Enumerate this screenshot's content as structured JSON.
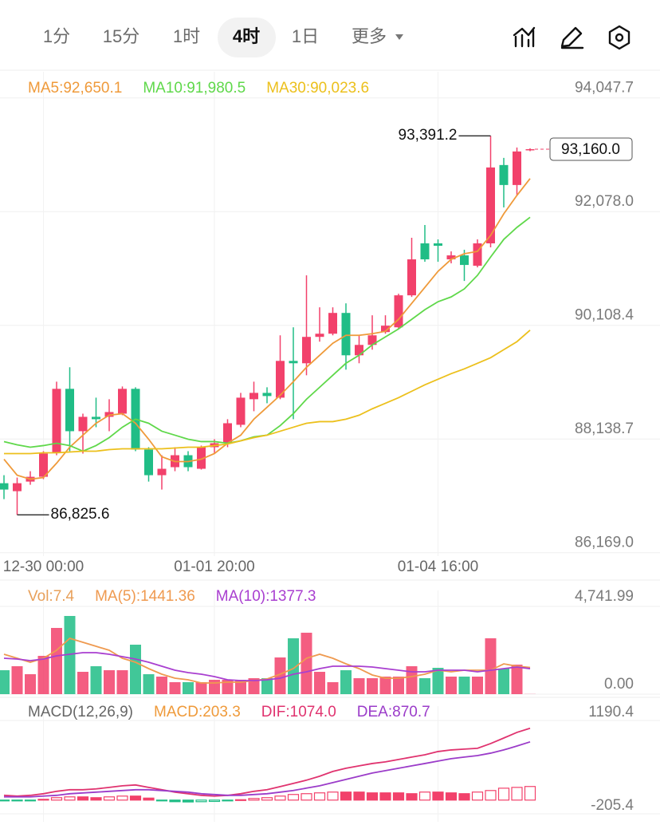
{
  "tabs": [
    "1分",
    "15分",
    "1时",
    "4时",
    "1日",
    "更多"
  ],
  "chart_data": [
    {
      "type": "candlestick",
      "categories": [
        null,
        null,
        null,
        "12-30 00:00",
        null,
        null,
        null,
        null,
        null,
        null,
        null,
        null,
        null,
        null,
        null,
        null,
        "01-01 20:00",
        null,
        null,
        null,
        null,
        null,
        null,
        null,
        null,
        null,
        null,
        null,
        null,
        null,
        null,
        null,
        null,
        "01-04 16:00",
        null,
        null,
        null,
        null,
        null,
        null,
        null
      ],
      "open": [
        87373,
        87235,
        87401,
        87484,
        87900,
        89008,
        88274,
        88523,
        88523,
        88578,
        89008,
        87955,
        87512,
        87651,
        87858,
        87623,
        87997,
        88066,
        88385,
        88828,
        88938,
        88855,
        89492,
        89451,
        89908,
        89963,
        90323,
        89589,
        89769,
        89991,
        90074,
        90628,
        91528,
        91528,
        91251,
        91320,
        91140,
        91528,
        92885,
        92539,
        93140
      ],
      "high": [
        87512,
        87471,
        87581,
        87928,
        89132,
        89382,
        88578,
        88855,
        88828,
        89049,
        89035,
        87997,
        87858,
        87997,
        87928,
        88025,
        88135,
        88482,
        88938,
        89132,
        89035,
        89935,
        90074,
        90974,
        90420,
        90420,
        90489,
        89935,
        90282,
        90282,
        90655,
        91625,
        91846,
        91597,
        91389,
        91417,
        91597,
        93391.2,
        93009,
        93189,
        93175
      ],
      "low": [
        87097,
        86825.6,
        87346,
        87443,
        87858,
        87928,
        87886,
        88343,
        88274,
        88551,
        87928,
        87401,
        87263,
        87581,
        87581,
        87609,
        87886,
        87997,
        88343,
        88620,
        88758,
        88828,
        88482,
        89243,
        89825,
        89935,
        89340,
        89451,
        89686,
        89963,
        90046,
        90600,
        91209,
        91209,
        91182,
        90877,
        91112,
        91459,
        92151,
        92359,
        93125
      ],
      "close": [
        87263,
        87373,
        87484,
        87886,
        89008,
        88274,
        88523,
        88482,
        88606,
        89008,
        87955,
        87512,
        87623,
        87858,
        87651,
        87997,
        88066,
        88412,
        88855,
        88938,
        88883,
        89492,
        89451,
        89908,
        89963,
        90323,
        89589,
        89769,
        89935,
        90102,
        90628,
        91251,
        91251,
        91486,
        91320,
        91154,
        91528,
        92843,
        92539,
        93120,
        93160
      ],
      "up_color": "#f2416b",
      "down_color": "#20bd86",
      "series": [
        {
          "name": "MA5:92,650.1",
          "color": "#ef9a3a",
          "values": [
            87789,
            87512,
            87443,
            87471,
            87720,
            87997,
            88205,
            88412,
            88551,
            88578,
            88412,
            88135,
            87831,
            87748,
            87748,
            87789,
            87886,
            88066,
            88205,
            88482,
            88689,
            88897,
            89132,
            89382,
            89589,
            89797,
            89935,
            89935,
            89963,
            90005,
            90212,
            90489,
            90766,
            91043,
            91251,
            91348,
            91389,
            91666,
            92040,
            92359,
            92650.1
          ]
        },
        {
          "name": "MA10:91,980.5",
          "color": "#5fd84a",
          "values": [
            88094,
            88038,
            87997,
            88025,
            88066,
            88025,
            87928,
            88025,
            88163,
            88343,
            88482,
            88412,
            88274,
            88205,
            88135,
            88094,
            88094,
            88066,
            88108,
            88177,
            88205,
            88371,
            88578,
            88828,
            89035,
            89243,
            89451,
            89589,
            89769,
            89908,
            90046,
            90212,
            90379,
            90517,
            90600,
            90739,
            90974,
            91292,
            91597,
            91805,
            91980.5
          ]
        },
        {
          "name": "MA30:90,023.6",
          "color": "#ecc01c",
          "values": [
            87886,
            87886,
            87886,
            87900,
            87900,
            87914,
            87928,
            87928,
            87955,
            87969,
            87969,
            87969,
            87969,
            87983,
            87997,
            87997,
            88025,
            88052,
            88108,
            88163,
            88205,
            88274,
            88343,
            88412,
            88440,
            88440,
            88482,
            88551,
            88662,
            88758,
            88855,
            88966,
            89077,
            89174,
            89271,
            89354,
            89451,
            89548,
            89686,
            89825,
            90023.6
          ]
        }
      ],
      "ylim": [
        86110,
        94500
      ],
      "yticks": [
        {
          "value": 94047.7,
          "label": "94,047.7"
        },
        {
          "value": 92078.0,
          "label": "92,078.0"
        },
        {
          "value": 90108.4,
          "label": "90,108.4"
        },
        {
          "value": 88138.7,
          "label": "88,138.7"
        },
        {
          "value": 86169.0,
          "label": "86,169.0"
        }
      ],
      "grid": true,
      "max_label": "93,391.2",
      "min_label": "86,825.6",
      "last_label": "93,160.0"
    },
    {
      "type": "bar",
      "name": "Vol:7.4",
      "label_color": "#e8a05a",
      "values": [
        1293,
        1509,
        1078,
        2069,
        3578,
        4225,
        1207,
        1509,
        1293,
        1293,
        2673,
        1078,
        948,
        647,
        647,
        647,
        776,
        776,
        776,
        862,
        862,
        1983,
        3018,
        3319,
        1207,
        647,
        1293,
        862,
        862,
        948,
        948,
        1509,
        862,
        1423,
        948,
        948,
        948,
        3018,
        1380,
        1595,
        7.4
      ],
      "series": [
        {
          "name": "MA(5):1441.36",
          "color": "#ef9a50",
          "values": [
            2156,
            1940,
            1724,
            1940,
            2371,
            3018,
            2802,
            2587,
            2371,
            1940,
            1724,
            1380,
            1078,
            862,
            776,
            604,
            604,
            647,
            647,
            733,
            819,
            1078,
            1380,
            1940,
            2156,
            1940,
            1638,
            1380,
            1035,
            862,
            862,
            948,
            1078,
            1293,
            1207,
            1293,
            1293,
            1293,
            1638,
            1509,
            1441.36
          ]
        },
        {
          "name": "MA(10):1377.3",
          "color": "#a93fd0",
          "values": [
            1940,
            1897,
            1811,
            1897,
            2069,
            2156,
            2242,
            2242,
            2156,
            2026,
            1897,
            1724,
            1509,
            1293,
            1164,
            1078,
            948,
            776,
            733,
            733,
            776,
            862,
            1078,
            1207,
            1380,
            1509,
            1509,
            1509,
            1466,
            1380,
            1293,
            1207,
            1207,
            1293,
            1293,
            1293,
            1207,
            1293,
            1380,
            1466,
            1377.3
          ]
        }
      ],
      "ylim": [
        0,
        5605
      ],
      "yticks": [
        {
          "value": 4741.99,
          "label": "4,741.99"
        },
        {
          "value": 0,
          "label": "0.00"
        }
      ]
    },
    {
      "type": "macd",
      "title": "MACD(12,26,9)",
      "up_color": "#f2416b",
      "down_color": "#20bd86",
      "series": [
        {
          "name": "MACD:203.3",
          "kind": "histogram",
          "color": "#ef9a3a",
          "values": [
            -10,
            -12,
            -8,
            12,
            36,
            48,
            48,
            36,
            48,
            60,
            60,
            30,
            -10,
            -24,
            -28,
            -24,
            -20,
            -12,
            6,
            24,
            36,
            60,
            84,
            96,
            108,
            120,
            120,
            120,
            108,
            108,
            108,
            96,
            120,
            120,
            108,
            96,
            120,
            143,
            178,
            190,
            203.3
          ]
        },
        {
          "name": "DIF:1074.0",
          "kind": "line",
          "color": "#e0336f",
          "values": [
            71,
            60,
            71,
            95,
            131,
            155,
            155,
            167,
            190,
            214,
            226,
            190,
            155,
            119,
            95,
            71,
            60,
            71,
            95,
            131,
            155,
            202,
            250,
            298,
            357,
            428,
            476,
            512,
            547,
            571,
            607,
            643,
            678,
            726,
            750,
            762,
            774,
            845,
            928,
            1012,
            1074.0
          ]
        },
        {
          "name": "DEA:870.7",
          "kind": "line",
          "color": "#9b3cc9",
          "values": [
            48,
            48,
            48,
            60,
            71,
            95,
            107,
            119,
            131,
            143,
            155,
            155,
            143,
            131,
            119,
            95,
            83,
            71,
            71,
            83,
            95,
            119,
            143,
            179,
            214,
            262,
            309,
            357,
            405,
            440,
            476,
            512,
            547,
            583,
            619,
            643,
            666,
            702,
            750,
            809,
            870.7
          ]
        }
      ],
      "ylim": [
        -205.4,
        1190.4
      ],
      "yticks": [
        1190.4,
        -205.4
      ]
    }
  ]
}
